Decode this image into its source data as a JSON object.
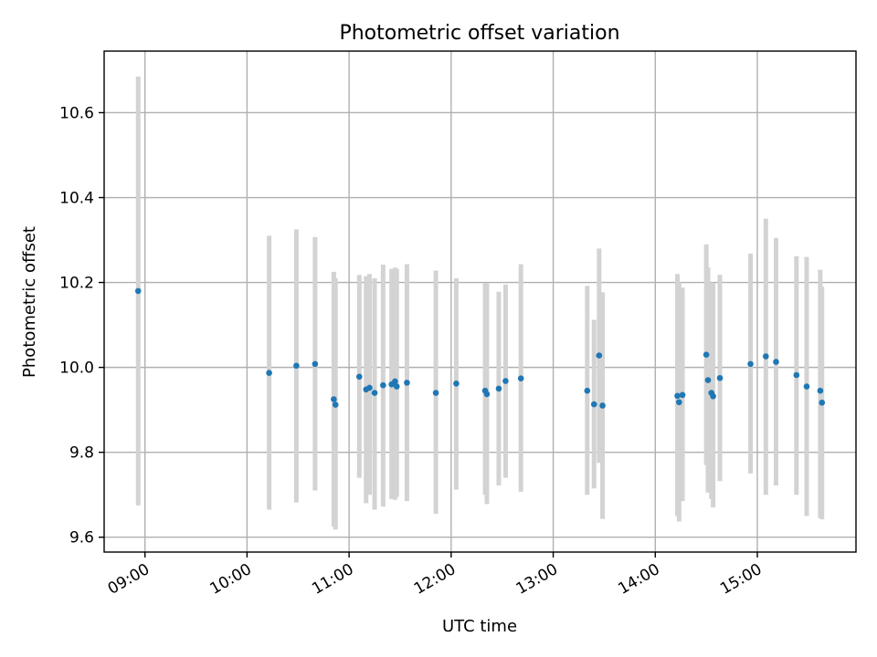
{
  "chart_data": {
    "type": "scatter",
    "title": "Photometric offset variation",
    "xlabel": "UTC time",
    "ylabel": "Photometric offset",
    "xlim": [
      "08:36",
      "15:58"
    ],
    "ylim": [
      9.565,
      10.745
    ],
    "x_ticks": [
      "09:00",
      "10:00",
      "11:00",
      "12:00",
      "13:00",
      "14:00",
      "15:00"
    ],
    "y_ticks": [
      9.6,
      9.8,
      10.0,
      10.2,
      10.4,
      10.6
    ],
    "grid": true,
    "colors": {
      "point": "#1f77b4",
      "error_bar": "#d3d3d3"
    },
    "series": [
      {
        "points": [
          {
            "t": "08:56",
            "y": 10.18,
            "lo": 9.675,
            "hi": 10.685
          },
          {
            "t": "10:13",
            "y": 9.987,
            "lo": 9.665,
            "hi": 10.31
          },
          {
            "t": "10:29",
            "y": 10.004,
            "lo": 9.682,
            "hi": 10.325
          },
          {
            "t": "10:40",
            "y": 10.008,
            "lo": 9.71,
            "hi": 10.307
          },
          {
            "t": "10:51",
            "y": 9.925,
            "lo": 9.625,
            "hi": 10.225
          },
          {
            "t": "10:52",
            "y": 9.912,
            "lo": 9.618,
            "hi": 10.21
          },
          {
            "t": "11:06",
            "y": 9.978,
            "lo": 9.74,
            "hi": 10.218
          },
          {
            "t": "11:10",
            "y": 9.948,
            "lo": 9.68,
            "hi": 10.215
          },
          {
            "t": "11:12",
            "y": 9.952,
            "lo": 9.7,
            "hi": 10.22
          },
          {
            "t": "11:15",
            "y": 9.94,
            "lo": 9.665,
            "hi": 10.21
          },
          {
            "t": "11:20",
            "y": 9.958,
            "lo": 9.672,
            "hi": 10.242
          },
          {
            "t": "11:25",
            "y": 9.96,
            "lo": 9.69,
            "hi": 10.232
          },
          {
            "t": "11:27",
            "y": 9.967,
            "lo": 9.688,
            "hi": 10.235
          },
          {
            "t": "11:28",
            "y": 9.955,
            "lo": 9.695,
            "hi": 10.232
          },
          {
            "t": "11:34",
            "y": 9.964,
            "lo": 9.685,
            "hi": 10.243
          },
          {
            "t": "11:51",
            "y": 9.94,
            "lo": 9.655,
            "hi": 10.228
          },
          {
            "t": "12:03",
            "y": 9.962,
            "lo": 9.712,
            "hi": 10.21
          },
          {
            "t": "12:20",
            "y": 9.945,
            "lo": 9.7,
            "hi": 10.198
          },
          {
            "t": "12:21",
            "y": 9.937,
            "lo": 9.678,
            "hi": 10.198
          },
          {
            "t": "12:28",
            "y": 9.95,
            "lo": 9.722,
            "hi": 10.178
          },
          {
            "t": "12:32",
            "y": 9.968,
            "lo": 9.74,
            "hi": 10.195
          },
          {
            "t": "12:41",
            "y": 9.974,
            "lo": 9.707,
            "hi": 10.243
          },
          {
            "t": "13:20",
            "y": 9.945,
            "lo": 9.7,
            "hi": 10.192
          },
          {
            "t": "13:24",
            "y": 9.913,
            "lo": 9.715,
            "hi": 10.112
          },
          {
            "t": "13:27",
            "y": 10.028,
            "lo": 9.775,
            "hi": 10.28
          },
          {
            "t": "13:29",
            "y": 9.91,
            "lo": 9.643,
            "hi": 10.177
          },
          {
            "t": "14:13",
            "y": 9.933,
            "lo": 9.65,
            "hi": 10.22
          },
          {
            "t": "14:14",
            "y": 9.918,
            "lo": 9.637,
            "hi": 10.2
          },
          {
            "t": "14:16",
            "y": 9.935,
            "lo": 9.685,
            "hi": 10.188
          },
          {
            "t": "14:30",
            "y": 10.03,
            "lo": 9.77,
            "hi": 10.29
          },
          {
            "t": "14:31",
            "y": 9.97,
            "lo": 9.705,
            "hi": 10.235
          },
          {
            "t": "14:33",
            "y": 9.94,
            "lo": 9.69,
            "hi": 10.2
          },
          {
            "t": "14:34",
            "y": 9.932,
            "lo": 9.67,
            "hi": 10.198
          },
          {
            "t": "14:38",
            "y": 9.975,
            "lo": 9.732,
            "hi": 10.218
          },
          {
            "t": "14:56",
            "y": 10.008,
            "lo": 9.75,
            "hi": 10.268
          },
          {
            "t": "15:05",
            "y": 10.026,
            "lo": 9.7,
            "hi": 10.35
          },
          {
            "t": "15:11",
            "y": 10.013,
            "lo": 9.722,
            "hi": 10.305
          },
          {
            "t": "15:23",
            "y": 9.982,
            "lo": 9.7,
            "hi": 10.262
          },
          {
            "t": "15:29",
            "y": 9.955,
            "lo": 9.65,
            "hi": 10.26
          },
          {
            "t": "15:37",
            "y": 9.945,
            "lo": 9.645,
            "hi": 10.23
          },
          {
            "t": "15:38",
            "y": 9.917,
            "lo": 9.642,
            "hi": 10.19
          }
        ]
      }
    ]
  }
}
